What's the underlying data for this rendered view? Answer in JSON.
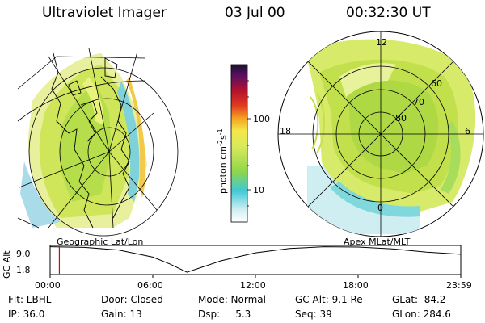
{
  "header": {
    "instrument": "Ultraviolet Imager",
    "date": "03 Jul 00",
    "time": "00:32:30 UT"
  },
  "colorbar": {
    "unit_prefix": "photon cm",
    "unit_exp1": "-2",
    "unit_s": "s",
    "unit_exp2": "-1",
    "tick_100": "100",
    "tick_10": "10"
  },
  "left_map": {
    "label": "Geographic Lat/Lon"
  },
  "right_map": {
    "label": "Apex MLat/MLT",
    "mlt_12": "12",
    "mlt_18": "18",
    "mlt_6": "6",
    "mlt_0": "0",
    "lat_60": "60",
    "lat_70": "70",
    "lat_80": "80"
  },
  "chart_data": {
    "type": "line",
    "ylabel": "GC Alt",
    "yticks": [
      "9.0",
      "1.8"
    ],
    "xticks": [
      "00:00",
      "06:00",
      "12:00",
      "18:00",
      "23:59"
    ],
    "x_hours": [
      0,
      2,
      4,
      6,
      7,
      8,
      9,
      10,
      12,
      14,
      16,
      18,
      20,
      22,
      23.98
    ],
    "y_re": [
      9.1,
      8.9,
      8.2,
      6.2,
      4.3,
      2.0,
      3.6,
      5.2,
      7.4,
      8.6,
      9.1,
      9.0,
      8.5,
      7.6,
      7.0
    ],
    "current_hour": 0.54,
    "ylim": [
      1.8,
      9.0
    ]
  },
  "status": {
    "flt": "Flt: LBHL",
    "door": "Door: Closed",
    "mode": "Mode: Normal",
    "gc_alt": "GC Alt: 9.1 Re",
    "glat": "GLat:  84.2",
    "ip": "IP: 36.0",
    "gain": "Gain: 13",
    "dsp": "Dsp:     5.3",
    "seq": "Seq: 39",
    "glon": "GLon: 284.6"
  },
  "colors": {
    "aurora_outer": "#e6f09a",
    "aurora_mid": "#c9e44a",
    "aurora_bright": "#9bd23c",
    "aurora_cyan": "#55cfd6",
    "marker": "#e00000"
  }
}
